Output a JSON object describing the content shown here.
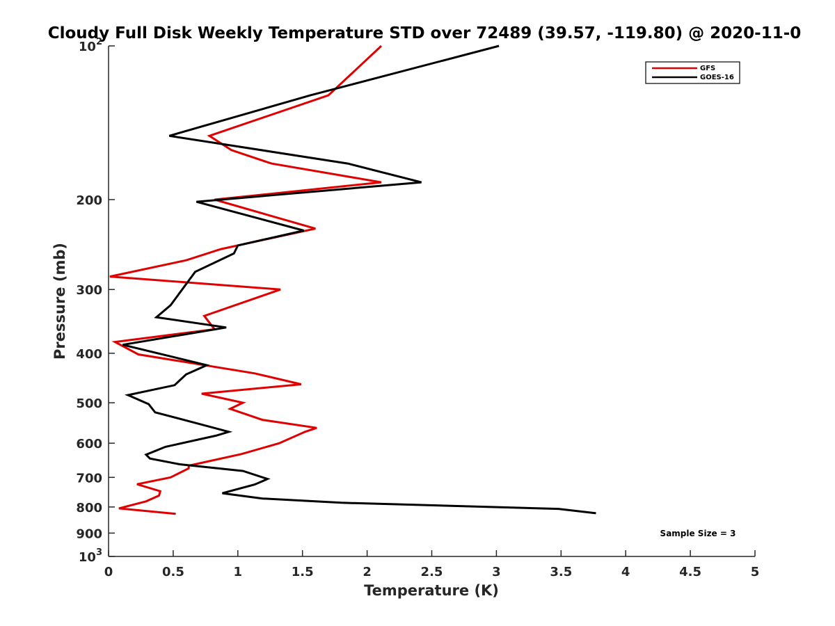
{
  "chart_data": {
    "type": "line",
    "title": "Cloudy Full Disk Weekly Temperature STD over 72489 (39.57, -119.80) @ 2020-11-0",
    "xlabel": "Temperature (K)",
    "ylabel": "Pressure (mb)",
    "xlim": [
      0,
      5
    ],
    "ylim": [
      100,
      1000
    ],
    "y_scale": "log",
    "y_reversed": true,
    "grid": false,
    "legend_position": "top-right",
    "x_ticks": [
      "0",
      "0.5",
      "1",
      "1.5",
      "2",
      "2.5",
      "3",
      "3.5",
      "4",
      "4.5",
      "5"
    ],
    "y_ticks": [
      {
        "value": 100,
        "base": "10",
        "exp": "2"
      },
      {
        "value": 200,
        "label": "200"
      },
      {
        "value": 300,
        "label": "300"
      },
      {
        "value": 400,
        "label": "400"
      },
      {
        "value": 500,
        "label": "500"
      },
      {
        "value": 600,
        "label": "600"
      },
      {
        "value": 700,
        "label": "700"
      },
      {
        "value": 800,
        "label": "800"
      },
      {
        "value": 900,
        "label": "900"
      },
      {
        "value": 1000,
        "base": "10",
        "exp": "3"
      }
    ],
    "series": [
      {
        "name": "GFS",
        "color": "#e00000",
        "points": [
          [
            2.11,
            100
          ],
          [
            1.7,
            125
          ],
          [
            0.78,
            150
          ],
          [
            0.95,
            160
          ],
          [
            1.26,
            170
          ],
          [
            2.11,
            185
          ],
          [
            0.82,
            200
          ],
          [
            1.6,
            228
          ],
          [
            0.87,
            250
          ],
          [
            0.6,
            263
          ],
          [
            0.01,
            283
          ],
          [
            1.33,
            300
          ],
          [
            0.74,
            338
          ],
          [
            0.82,
            359
          ],
          [
            0.05,
            380
          ],
          [
            0.23,
            402
          ],
          [
            1.13,
            438
          ],
          [
            1.49,
            460
          ],
          [
            0.72,
            480
          ],
          [
            1.04,
            500
          ],
          [
            0.94,
            514
          ],
          [
            1.19,
            540
          ],
          [
            1.61,
            560
          ],
          [
            1.52,
            570
          ],
          [
            1.32,
            600
          ],
          [
            1.03,
            630
          ],
          [
            0.62,
            664
          ],
          [
            0.62,
            672
          ],
          [
            0.48,
            700
          ],
          [
            0.22,
            722
          ],
          [
            0.4,
            745
          ],
          [
            0.39,
            760
          ],
          [
            0.29,
            780
          ],
          [
            0.08,
            805
          ],
          [
            0.52,
            825
          ]
        ]
      },
      {
        "name": "GOES-16",
        "color": "#000000",
        "points": [
          [
            3.02,
            100
          ],
          [
            1.56,
            125
          ],
          [
            0.47,
            150
          ],
          [
            1.85,
            170
          ],
          [
            2.42,
            185
          ],
          [
            0.68,
            202
          ],
          [
            1.51,
            230
          ],
          [
            1.0,
            246
          ],
          [
            0.97,
            255
          ],
          [
            0.67,
            277
          ],
          [
            0.48,
            322
          ],
          [
            0.37,
            340
          ],
          [
            0.91,
            356
          ],
          [
            0.11,
            385
          ],
          [
            0.76,
            422
          ],
          [
            0.6,
            440
          ],
          [
            0.51,
            462
          ],
          [
            0.15,
            483
          ],
          [
            0.31,
            503
          ],
          [
            0.36,
            522
          ],
          [
            0.7,
            550
          ],
          [
            0.93,
            570
          ],
          [
            0.83,
            580
          ],
          [
            0.44,
            610
          ],
          [
            0.29,
            632
          ],
          [
            0.32,
            643
          ],
          [
            0.55,
            660
          ],
          [
            1.04,
            680
          ],
          [
            1.23,
            705
          ],
          [
            1.13,
            723
          ],
          [
            0.88,
            752
          ],
          [
            1.19,
            770
          ],
          [
            1.8,
            785
          ],
          [
            3.48,
            807
          ],
          [
            3.77,
            823
          ]
        ]
      }
    ],
    "annotation": "Sample Size = 3"
  }
}
